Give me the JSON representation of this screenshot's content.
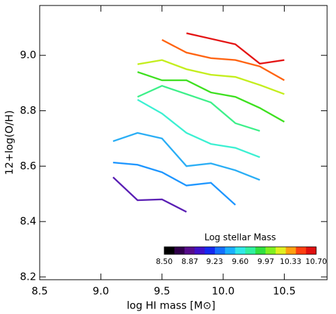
{
  "chart_data": {
    "type": "line",
    "xlabel": "log HI mass [M⊙]",
    "ylabel": "12+log(O/H)",
    "xlim": [
      8.5,
      10.85
    ],
    "ylim": [
      8.19,
      9.18
    ],
    "xticks": [
      8.5,
      {
        "value": 9,
        "label": "9.0"
      },
      9.5,
      {
        "value": 10,
        "label": "10.0"
      },
      10.5
    ],
    "yticks": [
      8.2,
      8.4,
      8.6,
      8.8,
      {
        "value": 9,
        "label": "9.0"
      }
    ],
    "series": [
      {
        "color": "#5a1fb4",
        "x": [
          9.1,
          9.3,
          9.5,
          9.7
        ],
        "values": [
          8.56,
          8.477,
          8.48,
          8.435
        ]
      },
      {
        "color": "#1e96ff",
        "x": [
          9.1,
          9.3,
          9.5,
          9.7,
          9.9,
          10.1
        ],
        "values": [
          8.613,
          8.605,
          8.578,
          8.53,
          8.54,
          8.46
        ]
      },
      {
        "color": "#2aaef5",
        "x": [
          9.1,
          9.3,
          9.5,
          9.7,
          9.9,
          10.1,
          10.3
        ],
        "values": [
          8.69,
          8.72,
          8.7,
          8.6,
          8.61,
          8.585,
          8.55
        ]
      },
      {
        "color": "#3cf0d2",
        "x": [
          9.3,
          9.5,
          9.7,
          9.9,
          10.1,
          10.3
        ],
        "values": [
          8.84,
          8.79,
          8.72,
          8.68,
          8.666,
          8.632
        ]
      },
      {
        "color": "#3ef08a",
        "x": [
          9.3,
          9.5,
          9.7,
          9.9,
          10.1,
          10.3
        ],
        "values": [
          8.85,
          8.89,
          8.86,
          8.83,
          8.755,
          8.727
        ]
      },
      {
        "color": "#3ee020",
        "x": [
          9.3,
          9.5,
          9.7,
          9.9,
          10.1,
          10.3,
          10.5
        ],
        "values": [
          8.94,
          8.91,
          8.91,
          8.866,
          8.85,
          8.81,
          8.76
        ]
      },
      {
        "color": "#c4ee1e",
        "x": [
          9.3,
          9.5,
          9.7,
          9.9,
          10.1,
          10.3,
          10.5
        ],
        "values": [
          8.968,
          8.983,
          8.95,
          8.93,
          8.922,
          8.893,
          8.86
        ]
      },
      {
        "color": "#ff6412",
        "x": [
          9.5,
          9.7,
          9.9,
          10.1,
          10.3,
          10.5
        ],
        "values": [
          9.056,
          9.01,
          8.99,
          8.983,
          8.96,
          8.91
        ]
      },
      {
        "color": "#e41414",
        "x": [
          9.7,
          9.9,
          10.1,
          10.3,
          10.5
        ],
        "values": [
          9.08,
          9.06,
          9.04,
          8.97,
          8.983
        ]
      }
    ],
    "colorbar": {
      "title": "Log stellar Mass",
      "range": [
        8.5,
        10.7
      ],
      "colors": [
        "#000000",
        "#30004a",
        "#560c8c",
        "#4010c8",
        "#1428f0",
        "#1470ff",
        "#1ab0ff",
        "#30e8e8",
        "#30f0a0",
        "#30e040",
        "#80f020",
        "#e0f020",
        "#ffa010",
        "#ff4010",
        "#e01010"
      ],
      "ticks": [
        {
          "value": 8.5,
          "label": "8.50"
        },
        8.87,
        9.23,
        {
          "value": 9.6,
          "label": "9.60"
        },
        9.97,
        10.33,
        {
          "value": 10.7,
          "label": "10.70"
        }
      ]
    }
  }
}
